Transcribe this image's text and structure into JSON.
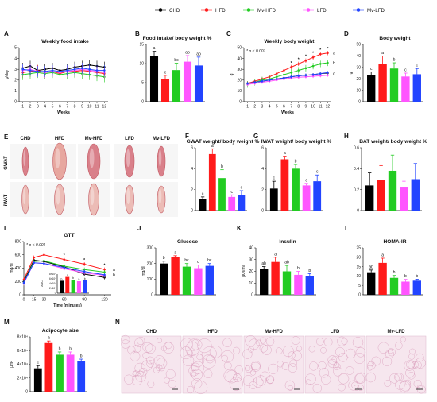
{
  "figure": {
    "legend": [
      {
        "name": "CHD",
        "color": "#000000"
      },
      {
        "name": "HFD",
        "color": "#ff1a1a"
      },
      {
        "name": "Mv-HFD",
        "color": "#22cc22"
      },
      {
        "name": "LFD",
        "color": "#ff55ff"
      },
      {
        "name": "Mv-LFD",
        "color": "#2244ff"
      }
    ],
    "images": {
      "E": {
        "label": "E",
        "columns": [
          "CHD",
          "HFD",
          "Mv-HFD",
          "LFD",
          "Mv-LFD"
        ],
        "rows": [
          "GWAT",
          "iWAT"
        ]
      },
      "N": {
        "label": "N",
        "columns": [
          "CHD",
          "HFD",
          "Mv-HFD",
          "LFD",
          "Mv-LFD"
        ]
      }
    }
  },
  "chart_data": [
    {
      "panel": "A",
      "type": "line",
      "title": "Weekly food intake",
      "xlabel": "Weeks",
      "ylabel": "g/day",
      "xlim": [
        0.5,
        12.5
      ],
      "ylim": [
        0,
        5
      ],
      "xticks": [
        1,
        2,
        3,
        4,
        5,
        6,
        7,
        8,
        9,
        10,
        11,
        12
      ],
      "yticks": [
        0,
        1,
        2,
        3,
        4,
        5
      ],
      "x": [
        1,
        2,
        3,
        4,
        5,
        6,
        7,
        8,
        9,
        10,
        11,
        12
      ],
      "series": [
        {
          "name": "CHD",
          "values": [
            3.1,
            3.3,
            2.9,
            3.0,
            3.1,
            2.9,
            3.0,
            3.2,
            3.3,
            3.4,
            3.3,
            3.2
          ],
          "err": 0.5
        },
        {
          "name": "HFD",
          "values": [
            2.7,
            2.8,
            2.9,
            2.7,
            2.8,
            2.6,
            2.8,
            2.8,
            2.9,
            2.8,
            2.7,
            2.6
          ],
          "err": 0.5
        },
        {
          "name": "Mv-HFD",
          "values": [
            2.5,
            2.6,
            2.7,
            2.6,
            2.7,
            2.5,
            2.6,
            2.7,
            2.6,
            2.5,
            2.4,
            2.3
          ],
          "err": 0.5
        },
        {
          "name": "LFD",
          "values": [
            2.9,
            3.0,
            2.8,
            2.7,
            2.8,
            2.7,
            2.8,
            2.9,
            3.0,
            2.9,
            2.8,
            2.7
          ],
          "err": 0.5
        },
        {
          "name": "Mv-LFD",
          "values": [
            3.0,
            2.9,
            2.8,
            2.8,
            2.9,
            2.8,
            2.9,
            3.0,
            3.1,
            3.0,
            2.9,
            2.9
          ],
          "err": 0.5
        }
      ]
    },
    {
      "panel": "B",
      "type": "bar",
      "title": "Food intake/ body weight %",
      "ylabel": "",
      "ylim": [
        0,
        15
      ],
      "yticks": [
        0,
        5,
        10,
        15
      ],
      "categories": [
        "CHD",
        "HFD",
        "Mv-HFD",
        "LFD",
        "Mv-LFD"
      ],
      "values": [
        12,
        6,
        8.3,
        10.5,
        9.5
      ],
      "err": [
        1.2,
        0.9,
        1.8,
        1.6,
        2.2
      ],
      "letters": [
        "a",
        "c",
        "bc",
        "ab",
        "ab"
      ]
    },
    {
      "panel": "C",
      "type": "line",
      "title": "Weekly body weight",
      "xlabel": "Weeks",
      "ylabel": "g",
      "xlim": [
        0.5,
        12.5
      ],
      "ylim": [
        0,
        50
      ],
      "xticks": [
        1,
        2,
        3,
        4,
        5,
        6,
        7,
        8,
        9,
        10,
        11,
        12
      ],
      "yticks": [
        0,
        10,
        20,
        30,
        40,
        50
      ],
      "annotation": "* p < 0.001",
      "x": [
        1,
        2,
        3,
        4,
        5,
        6,
        7,
        8,
        9,
        10,
        11,
        12
      ],
      "series": [
        {
          "name": "CHD",
          "values": [
            17,
            18,
            19,
            20,
            21,
            22,
            23,
            24,
            24.5,
            25,
            26,
            26.5
          ],
          "err": 1.5
        },
        {
          "name": "HFD",
          "values": [
            17,
            19,
            21,
            23,
            26,
            29,
            32,
            35,
            38,
            41,
            44,
            45
          ],
          "err": 2
        },
        {
          "name": "Mv-HFD",
          "values": [
            16,
            18,
            20,
            21,
            23,
            25,
            27,
            29,
            31,
            33,
            35,
            36
          ],
          "err": 3
        },
        {
          "name": "LFD",
          "values": [
            16,
            17,
            18,
            19,
            20,
            21,
            22,
            22.5,
            23,
            23.5,
            24,
            24.5
          ],
          "err": 1.5
        },
        {
          "name": "Mv-LFD",
          "values": [
            17,
            18,
            19,
            20,
            21,
            22,
            23,
            24,
            24.5,
            25,
            26,
            27
          ],
          "err": 1.5
        }
      ],
      "star_weeks": [
        7,
        8,
        9,
        10,
        11,
        12
      ],
      "end_letters": [
        [
          "a",
          45
        ],
        [
          "b",
          36
        ],
        [
          "c",
          26
        ]
      ]
    },
    {
      "panel": "D",
      "type": "bar",
      "title": "Body weight",
      "ylabel": "g",
      "ylim": [
        0,
        50
      ],
      "yticks": [
        0,
        10,
        20,
        30,
        40,
        50
      ],
      "categories": [
        "CHD",
        "HFD",
        "Mv-HFD",
        "LFD",
        "Mv-LFD"
      ],
      "values": [
        23,
        33,
        29,
        22,
        24
      ],
      "err": [
        3,
        7,
        5,
        3,
        5
      ],
      "letters": [
        "c",
        "a",
        "b",
        "c",
        "c"
      ]
    },
    {
      "panel": "F",
      "type": "bar",
      "title": "GWAT weight/ body weight %",
      "ylabel": "",
      "ylim": [
        0,
        6
      ],
      "yticks": [
        0,
        2,
        4,
        6
      ],
      "categories": [
        "CHD",
        "HFD",
        "Mv-HFD",
        "LFD",
        "Mv-LFD"
      ],
      "values": [
        1.1,
        5.4,
        3.1,
        1.3,
        1.5
      ],
      "err": [
        0.2,
        0.5,
        0.8,
        0.2,
        0.4
      ],
      "letters": [
        "c",
        "a",
        "b",
        "c",
        "c"
      ]
    },
    {
      "panel": "G",
      "type": "bar",
      "title": "IWAT weight/ body weight %",
      "ylabel": "",
      "ylim": [
        0,
        6
      ],
      "yticks": [
        0,
        2,
        4,
        6
      ],
      "categories": [
        "CHD",
        "HFD",
        "Mv-HFD",
        "LFD",
        "Mv-LFD"
      ],
      "values": [
        2.1,
        4.9,
        4.0,
        2.4,
        2.8
      ],
      "err": [
        0.7,
        0.3,
        0.4,
        0.2,
        0.6
      ],
      "letters": [
        "c",
        "a",
        "b",
        "c",
        "c"
      ]
    },
    {
      "panel": "H",
      "type": "bar",
      "title": "BAT weight/ body weight %",
      "ylabel": "",
      "ylim": [
        0,
        0.6
      ],
      "yticks": [
        0,
        0.2,
        0.4,
        0.6
      ],
      "categories": [
        "CHD",
        "HFD",
        "Mv-HFD",
        "LFD",
        "Mv-LFD"
      ],
      "values": [
        0.24,
        0.29,
        0.38,
        0.22,
        0.3
      ],
      "err": [
        0.12,
        0.14,
        0.15,
        0.06,
        0.15
      ],
      "letters": [
        "",
        "",
        "",
        "",
        ""
      ]
    },
    {
      "panel": "I",
      "type": "line",
      "title": "GTT",
      "xlabel": "Time (minutes)",
      "ylabel": "mg/dl",
      "xlim": [
        0,
        130
      ],
      "ylim": [
        0,
        800
      ],
      "xticks": [
        0,
        15,
        30,
        60,
        90,
        120
      ],
      "yticks": [
        0,
        200,
        400,
        600,
        800
      ],
      "annotation": "* p < 0.001",
      "x": [
        0,
        15,
        30,
        60,
        90,
        120
      ],
      "series": [
        {
          "name": "CHD",
          "values": [
            200,
            520,
            500,
            420,
            310,
            260
          ],
          "err": 30
        },
        {
          "name": "HFD",
          "values": [
            230,
            560,
            600,
            530,
            460,
            380
          ],
          "err": 30
        },
        {
          "name": "Mv-HFD",
          "values": [
            180,
            500,
            510,
            430,
            380,
            340
          ],
          "err": 30
        },
        {
          "name": "LFD",
          "values": [
            170,
            480,
            470,
            390,
            330,
            290
          ],
          "err": 30
        },
        {
          "name": "Mv-LFD",
          "values": [
            180,
            480,
            470,
            410,
            350,
            300
          ],
          "err": 30
        }
      ],
      "star_x": [
        60,
        90,
        120
      ],
      "end_letters": [
        [
          "a",
          380
        ],
        [
          "b",
          300
        ]
      ],
      "inset": {
        "ylabel": "AUC",
        "yticks": [
          "0",
          "2×10⁴",
          "4×10⁴",
          "6×10⁴",
          "8×10⁴"
        ],
        "ylim": [
          0,
          80000
        ],
        "values": [
          52000,
          68000,
          56000,
          50000,
          54000
        ],
        "letters": [
          "b",
          "a",
          "b",
          "b",
          "b"
        ]
      }
    },
    {
      "panel": "J",
      "type": "bar",
      "title": "Glucose",
      "ylabel": "mg/dl",
      "ylim": [
        0,
        300
      ],
      "yticks": [
        0,
        100,
        200,
        300
      ],
      "categories": [
        "CHD",
        "HFD",
        "Mv-HFD",
        "LFD",
        "Mv-LFD"
      ],
      "values": [
        200,
        240,
        180,
        170,
        185
      ],
      "err": [
        15,
        10,
        20,
        20,
        15
      ],
      "letters": [
        "b",
        "a",
        "bc",
        "c",
        "bc"
      ]
    },
    {
      "panel": "K",
      "type": "bar",
      "title": "Insulin",
      "ylabel": "µUI/ml",
      "ylim": [
        0,
        40
      ],
      "yticks": [
        0,
        10,
        20,
        30,
        40
      ],
      "categories": [
        "CHD",
        "HFD",
        "Mv-HFD",
        "LFD",
        "Mv-LFD"
      ],
      "values": [
        22,
        28,
        20,
        17,
        16
      ],
      "err": [
        2,
        4,
        5,
        3,
        2
      ],
      "letters": [
        "ab",
        "a",
        "ab",
        "b",
        "b"
      ]
    },
    {
      "panel": "L",
      "type": "bar",
      "title": "HOMA-IR",
      "ylabel": "",
      "ylim": [
        0,
        25
      ],
      "yticks": [
        0,
        5,
        10,
        15,
        20,
        25
      ],
      "categories": [
        "CHD",
        "HFD",
        "Mv-HFD",
        "LFD",
        "Mv-LFD"
      ],
      "values": [
        12,
        17,
        9,
        7,
        7.5
      ],
      "err": [
        1.2,
        2.5,
        1.3,
        1.2,
        0.8
      ],
      "letters": [
        "ab",
        "a",
        "b",
        "b",
        "b"
      ]
    },
    {
      "panel": "M",
      "type": "bar",
      "title": "Adipocyte size",
      "ylabel": "µm²",
      "ylim": [
        0,
        80000
      ],
      "yticks": [
        0,
        20000,
        40000,
        60000,
        80000
      ],
      "ytick_labels": [
        "0",
        "2×10⁴",
        "4×10⁴",
        "6×10⁴",
        "8×10⁴"
      ],
      "categories": [
        "CHD",
        "HFD",
        "Mv-HFD",
        "LFD",
        "Mv-LFD"
      ],
      "values": [
        34000,
        71000,
        54000,
        54000,
        45000
      ],
      "err": [
        4000,
        3000,
        4000,
        4000,
        2500
      ],
      "letters": [
        "c",
        "a",
        "b",
        "b",
        "b"
      ]
    }
  ]
}
